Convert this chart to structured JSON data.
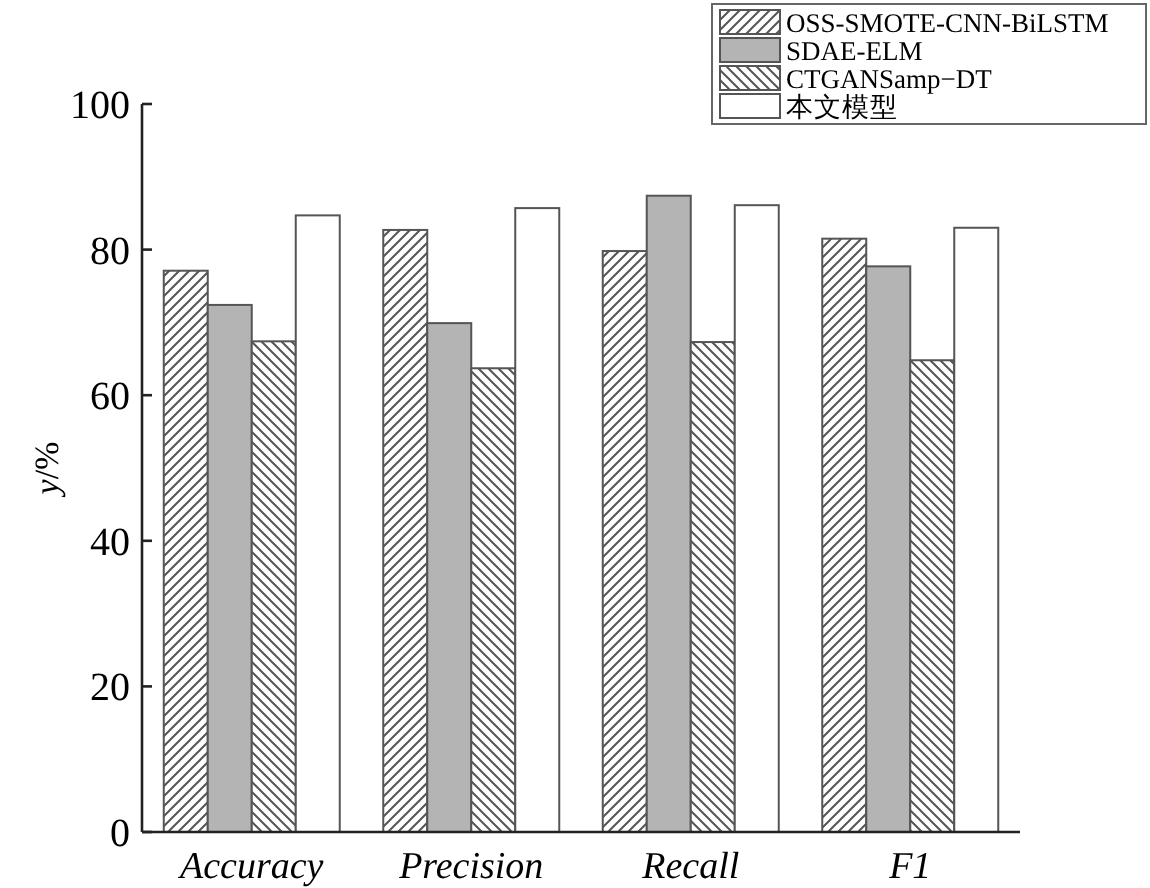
{
  "chart_data": {
    "type": "bar",
    "ylabel": "*y*/%",
    "categories": [
      "Accuracy",
      "Precision",
      "Recall",
      "F1"
    ],
    "series": [
      {
        "name": "OSS-SMOTE-CNN-BiLSTM",
        "color": "#555555",
        "values": [
          77.1,
          82.7,
          79.8,
          81.5
        ]
      },
      {
        "name": "SDAE-ELM",
        "color": "#b4b4b4",
        "values": [
          72.4,
          69.9,
          87.4,
          77.7
        ]
      },
      {
        "name": "CTGANSamp−DT",
        "color": "#555555",
        "values": [
          67.4,
          63.7,
          67.3,
          64.8
        ]
      },
      {
        "name": "本文模型",
        "color": "#ffffff",
        "values": [
          84.7,
          85.7,
          86.1,
          83.0
        ]
      }
    ],
    "ylim": [
      0,
      100
    ],
    "yticks": [
      0,
      20,
      40,
      60,
      80,
      100
    ],
    "legend": "top right"
  }
}
